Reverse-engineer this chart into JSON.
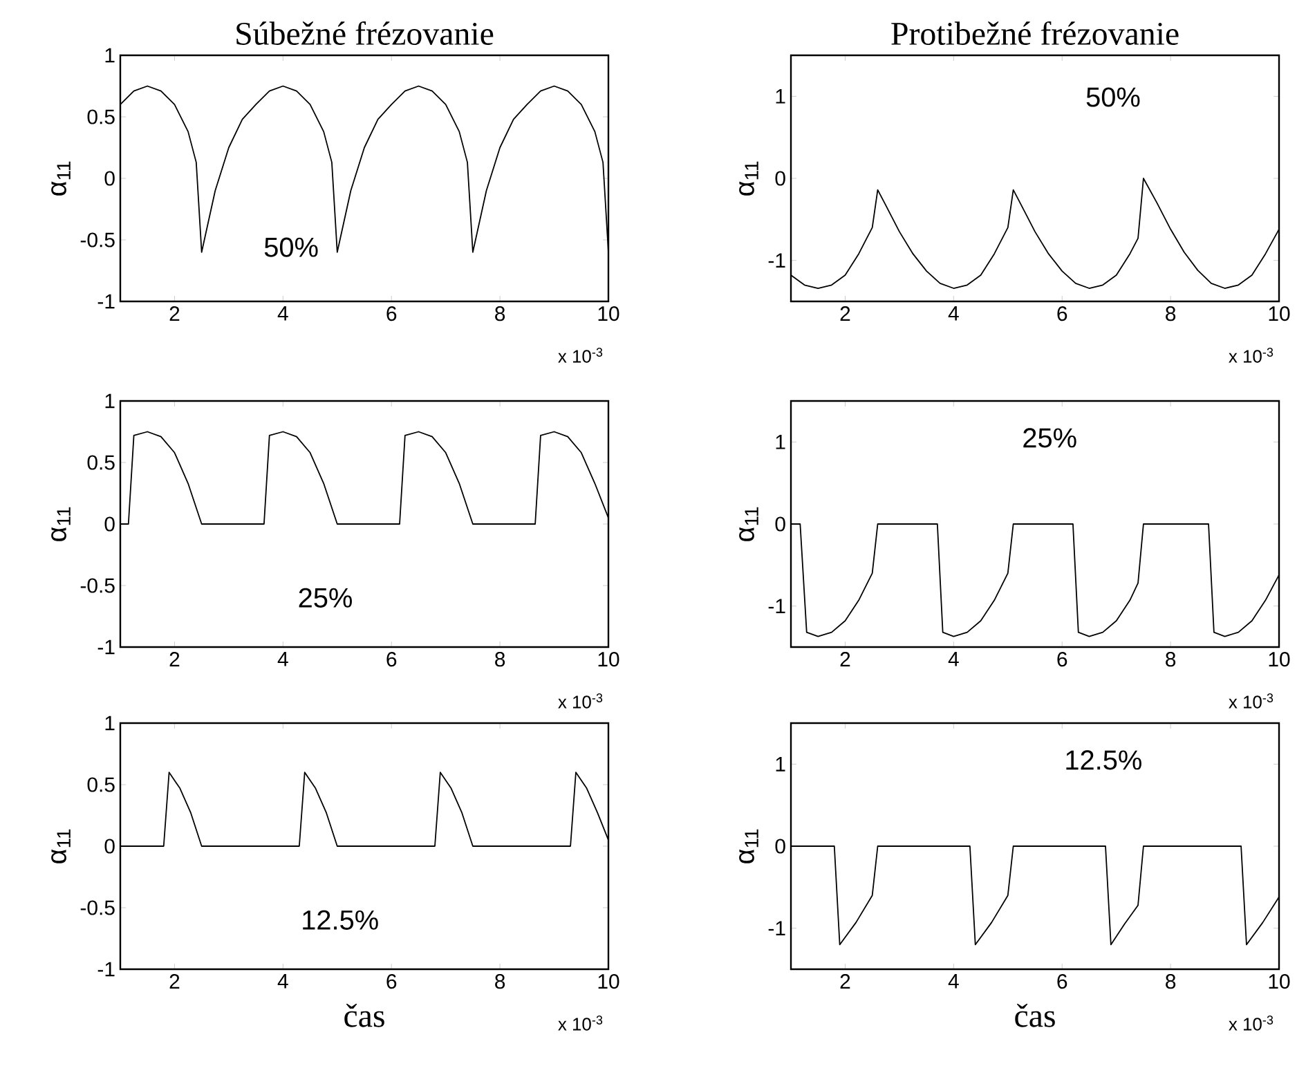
{
  "chart_data": [
    {
      "type": "line",
      "title": "Súbežné frézovanie",
      "ylabel": "α$_{11}$",
      "annotations": [
        "50%",
        "x 10$^{-3}$"
      ],
      "color": "#000000",
      "xlim": [
        1,
        10
      ],
      "ylim": [
        -1,
        1
      ],
      "xticks": [
        2,
        4,
        6,
        8,
        10
      ],
      "yticks": [
        -1,
        -0.5,
        0,
        0.5,
        1
      ],
      "x": [
        1.0,
        1.25,
        1.5,
        1.75,
        2.0,
        2.25,
        2.4,
        2.5,
        2.75,
        3.0,
        3.25,
        3.5,
        3.75,
        4.0,
        4.25,
        4.5,
        4.75,
        4.9,
        5.0,
        5.25,
        5.5,
        5.75,
        6.0,
        6.25,
        6.5,
        6.75,
        7.0,
        7.25,
        7.4,
        7.5,
        7.75,
        8.0,
        8.25,
        8.5,
        8.75,
        9.0,
        9.25,
        9.5,
        9.75,
        9.9,
        10.0
      ],
      "values": [
        0.6,
        0.71,
        0.75,
        0.71,
        0.6,
        0.38,
        0.13,
        -0.6,
        -0.1,
        0.25,
        0.48,
        0.6,
        0.71,
        0.75,
        0.71,
        0.6,
        0.38,
        0.13,
        -0.6,
        -0.1,
        0.25,
        0.48,
        0.6,
        0.71,
        0.75,
        0.71,
        0.6,
        0.38,
        0.13,
        -0.6,
        -0.1,
        0.25,
        0.48,
        0.6,
        0.71,
        0.75,
        0.71,
        0.6,
        0.38,
        0.13,
        -0.6
      ]
    },
    {
      "type": "line",
      "title": "Protibežné frézovanie",
      "ylabel": "α$_{11}$",
      "annotations": [
        "50%",
        "x 10$^{-3}$"
      ],
      "color": "#000000",
      "xlim": [
        1,
        10
      ],
      "ylim": [
        -1.5,
        1.5
      ],
      "xticks": [
        2,
        4,
        6,
        8,
        10
      ],
      "yticks": [
        -1,
        0,
        1
      ],
      "x": [
        1.0,
        1.25,
        1.5,
        1.75,
        2.0,
        2.25,
        2.5,
        2.6,
        2.75,
        3.0,
        3.25,
        3.5,
        3.75,
        4.0,
        4.25,
        4.5,
        4.75,
        5.0,
        5.1,
        5.25,
        5.5,
        5.75,
        6.0,
        6.25,
        6.5,
        6.75,
        7.0,
        7.25,
        7.4,
        7.5,
        7.75,
        8.0,
        8.25,
        8.5,
        8.75,
        9.0,
        9.25,
        9.5,
        9.75,
        10.0
      ],
      "values": [
        -1.18,
        -1.3,
        -1.34,
        -1.3,
        -1.18,
        -0.92,
        -0.6,
        -0.14,
        -0.33,
        -0.65,
        -0.92,
        -1.13,
        -1.28,
        -1.34,
        -1.3,
        -1.18,
        -0.92,
        -0.6,
        -0.14,
        -0.33,
        -0.65,
        -0.92,
        -1.13,
        -1.28,
        -1.34,
        -1.3,
        -1.18,
        -0.92,
        -0.73,
        0,
        -0.3,
        -0.62,
        -0.9,
        -1.12,
        -1.28,
        -1.34,
        -1.3,
        -1.18,
        -0.92,
        -0.62
      ]
    },
    {
      "type": "line",
      "ylabel": "α$_{11}$",
      "annotations": [
        "25%",
        "x 10$^{-3}$"
      ],
      "color": "#000000",
      "xlim": [
        1,
        10
      ],
      "ylim": [
        -1,
        1
      ],
      "xticks": [
        2,
        4,
        6,
        8,
        10
      ],
      "yticks": [
        -1,
        -0.5,
        0,
        0.5,
        1
      ],
      "x": [
        1.0,
        1.15,
        1.25,
        1.5,
        1.75,
        2.0,
        2.25,
        2.5,
        3.65,
        3.75,
        4.0,
        4.25,
        4.5,
        4.75,
        5.0,
        6.15,
        6.25,
        6.5,
        6.75,
        7.0,
        7.25,
        7.5,
        8.65,
        8.75,
        9.0,
        9.25,
        9.5,
        9.75,
        10.0
      ],
      "values": [
        0,
        0,
        0.72,
        0.75,
        0.71,
        0.58,
        0.33,
        0,
        0,
        0.72,
        0.75,
        0.71,
        0.58,
        0.33,
        0,
        0,
        0.72,
        0.75,
        0.71,
        0.58,
        0.33,
        0,
        0,
        0.72,
        0.75,
        0.71,
        0.58,
        0.33,
        0.05
      ]
    },
    {
      "type": "line",
      "ylabel": "α$_{11}$",
      "annotations": [
        "25%",
        "x 10$^{-3}$"
      ],
      "color": "#000000",
      "xlim": [
        1,
        10
      ],
      "ylim": [
        -1.5,
        1.5
      ],
      "xticks": [
        2,
        4,
        6,
        8,
        10
      ],
      "yticks": [
        -1,
        0,
        1
      ],
      "x": [
        1.0,
        1.17,
        1.29,
        1.5,
        1.75,
        2.0,
        2.25,
        2.5,
        2.6,
        3.7,
        3.8,
        4.0,
        4.25,
        4.5,
        4.75,
        5.0,
        5.1,
        6.2,
        6.3,
        6.5,
        6.75,
        7.0,
        7.25,
        7.4,
        7.5,
        8.7,
        8.8,
        9.0,
        9.25,
        9.5,
        9.75,
        10.0
      ],
      "values": [
        0,
        0,
        -1.32,
        -1.37,
        -1.32,
        -1.18,
        -0.93,
        -0.6,
        0,
        0,
        -1.32,
        -1.37,
        -1.32,
        -1.18,
        -0.93,
        -0.6,
        0,
        0,
        -1.32,
        -1.37,
        -1.32,
        -1.18,
        -0.93,
        -0.72,
        0,
        0,
        -1.32,
        -1.37,
        -1.32,
        -1.18,
        -0.93,
        -0.62
      ]
    },
    {
      "type": "line",
      "xlabel": "čas",
      "ylabel": "α$_{11}$",
      "annotations": [
        "12.5%",
        "x 10$^{-3}$"
      ],
      "color": "#000000",
      "xlim": [
        1,
        10
      ],
      "ylim": [
        -1,
        1
      ],
      "xticks": [
        2,
        4,
        6,
        8,
        10
      ],
      "yticks": [
        -1,
        -0.5,
        0,
        0.5,
        1
      ],
      "x": [
        1.0,
        1.8,
        1.9,
        2.1,
        2.3,
        2.5,
        4.3,
        4.4,
        4.6,
        4.8,
        5.0,
        6.8,
        6.9,
        7.1,
        7.3,
        7.5,
        9.3,
        9.4,
        9.6,
        9.8,
        10.0
      ],
      "values": [
        0,
        0,
        0.6,
        0.47,
        0.27,
        0,
        0,
        0.6,
        0.47,
        0.27,
        0,
        0,
        0.6,
        0.47,
        0.27,
        0,
        0,
        0.6,
        0.47,
        0.27,
        0.05
      ]
    },
    {
      "type": "line",
      "xlabel": "čas",
      "ylabel": "α$_{11}$",
      "annotations": [
        "12.5%",
        "x 10$^{-3}$"
      ],
      "color": "#000000",
      "xlim": [
        1,
        10
      ],
      "ylim": [
        -1.5,
        1.5
      ],
      "xticks": [
        2,
        4,
        6,
        8,
        10
      ],
      "yticks": [
        -1,
        0,
        1
      ],
      "x": [
        1.0,
        1.8,
        1.9,
        2.2,
        2.5,
        2.6,
        4.3,
        4.4,
        4.7,
        5.0,
        5.1,
        6.8,
        6.9,
        7.15,
        7.4,
        7.5,
        9.3,
        9.4,
        9.7,
        10.0
      ],
      "values": [
        0,
        0,
        -1.2,
        -0.93,
        -0.6,
        0,
        0,
        -1.2,
        -0.93,
        -0.6,
        0,
        0,
        -1.2,
        -0.95,
        -0.72,
        0,
        0,
        -1.2,
        -0.93,
        -0.62
      ]
    }
  ]
}
